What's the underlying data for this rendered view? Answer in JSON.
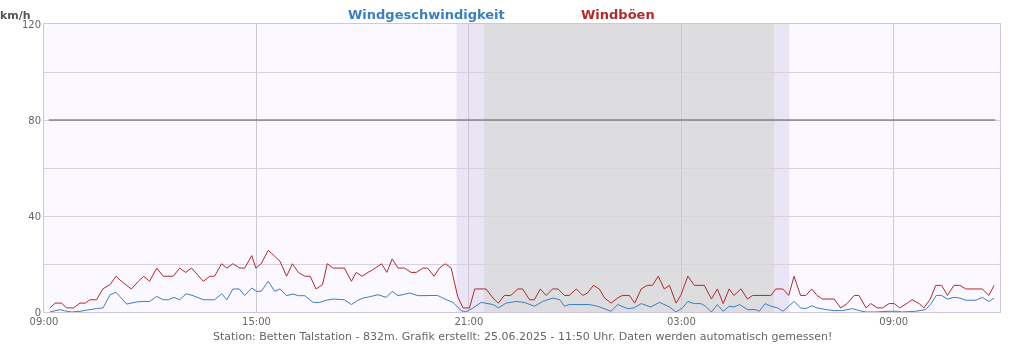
{
  "chart_data": {
    "type": "line",
    "ylabel": "km/h",
    "annotations": [
      "Station: Betten Talstation - 832m. Grafik erstellt: 25.06.2025 - 11:50 Uhr. Daten werden automatisch gemessen!"
    ],
    "xlim": [
      "2025-06-24T09:00",
      "2025-06-25T12:00"
    ],
    "xticks": [
      {
        "value": "2025-06-24T09:00",
        "label": "09:00"
      },
      {
        "value": "2025-06-24T15:00",
        "label": "15:00"
      },
      {
        "value": "2025-06-24T21:00",
        "label": "21:00"
      },
      {
        "value": "2025-06-25T03:00",
        "label": "03:00"
      },
      {
        "value": "2025-06-25T09:00",
        "label": "09:00"
      }
    ],
    "ylim": [
      0,
      120
    ],
    "yticks": [
      0,
      {
        "value": 20,
        "label": null
      },
      40,
      {
        "value": 60,
        "label": null
      },
      80,
      {
        "value": 100,
        "label": null
      },
      120
    ],
    "grid": true,
    "legend": "top",
    "marker": "none",
    "line_style": "solid",
    "ref_lines": [
      {
        "axis": "y",
        "value": 80,
        "color": "#555555"
      }
    ],
    "bands": [
      {
        "axis": "x",
        "from": "2025-06-24T20:39",
        "to": "2025-06-25T06:03",
        "color": "#e9e5f5"
      },
      {
        "axis": "x",
        "from": "2025-06-24T21:26",
        "to": "2025-06-25T05:37",
        "color": "#dddde0"
      }
    ],
    "series": [
      {
        "name": "Windgeschwindigkeit",
        "color": "#3a7fc1",
        "x": [
          "2025-06-24T09:10",
          "2025-06-24T09:27",
          "2025-06-24T09:35",
          "2025-06-24T09:47",
          "2025-06-24T10:01",
          "2025-06-24T10:18",
          "2025-06-24T10:29",
          "2025-06-24T10:40",
          "2025-06-24T10:52",
          "2025-06-24T11:02",
          "2025-06-24T11:11",
          "2025-06-24T11:20",
          "2025-06-24T11:37",
          "2025-06-24T11:48",
          "2025-06-24T11:59",
          "2025-06-24T12:11",
          "2025-06-24T12:22",
          "2025-06-24T12:31",
          "2025-06-24T12:40",
          "2025-06-24T12:50",
          "2025-06-24T13:01",
          "2025-06-24T13:13",
          "2025-06-24T13:30",
          "2025-06-24T13:49",
          "2025-06-24T14:01",
          "2025-06-24T14:10",
          "2025-06-24T14:20",
          "2025-06-24T14:31",
          "2025-06-24T14:40",
          "2025-06-24T14:52",
          "2025-06-24T15:00",
          "2025-06-24T15:08",
          "2025-06-24T15:20",
          "2025-06-24T15:31",
          "2025-06-24T15:40",
          "2025-06-24T15:51",
          "2025-06-24T16:02",
          "2025-06-24T16:11",
          "2025-06-24T16:22",
          "2025-06-24T16:36",
          "2025-06-24T16:47",
          "2025-06-24T16:58",
          "2025-06-24T17:10",
          "2025-06-24T17:29",
          "2025-06-24T17:41",
          "2025-06-24T17:52",
          "2025-06-24T18:01",
          "2025-06-24T18:11",
          "2025-06-24T18:26",
          "2025-06-24T18:40",
          "2025-06-24T18:50",
          "2025-06-24T19:00",
          "2025-06-24T19:20",
          "2025-06-24T19:34",
          "2025-06-24T20:07",
          "2025-06-24T20:22",
          "2025-06-24T20:33",
          "2025-06-24T20:47",
          "2025-06-24T20:55",
          "2025-06-24T21:07",
          "2025-06-24T21:21",
          "2025-06-24T21:41",
          "2025-06-24T21:50",
          "2025-06-24T22:03",
          "2025-06-24T22:20",
          "2025-06-24T22:34",
          "2025-06-24T22:51",
          "2025-06-24T23:05",
          "2025-06-24T23:22",
          "2025-06-24T23:34",
          "2025-06-24T23:42",
          "2025-06-24T23:50",
          "2025-06-25T00:10",
          "2025-06-25T00:24",
          "2025-06-25T00:38",
          "2025-06-25T01:01",
          "2025-06-25T01:12",
          "2025-06-25T01:29",
          "2025-06-25T01:40",
          "2025-06-25T01:52",
          "2025-06-25T02:08",
          "2025-06-25T02:23",
          "2025-06-25T02:40",
          "2025-06-25T02:51",
          "2025-06-25T03:02",
          "2025-06-25T03:11",
          "2025-06-25T03:22",
          "2025-06-25T03:33",
          "2025-06-25T03:41",
          "2025-06-25T03:51",
          "2025-06-25T04:01",
          "2025-06-25T04:11",
          "2025-06-25T04:21",
          "2025-06-25T04:29",
          "2025-06-25T04:39",
          "2025-06-25T04:52",
          "2025-06-25T05:06",
          "2025-06-25T05:12",
          "2025-06-25T05:22",
          "2025-06-25T05:32",
          "2025-06-25T05:43",
          "2025-06-25T05:52",
          "2025-06-25T06:02",
          "2025-06-25T06:11",
          "2025-06-25T06:22",
          "2025-06-25T06:31",
          "2025-06-25T06:41",
          "2025-06-25T06:50",
          "2025-06-25T07:05",
          "2025-06-25T07:19",
          "2025-06-25T07:33",
          "2025-06-25T07:50",
          "2025-06-25T08:01",
          "2025-06-25T08:13",
          "2025-06-25T08:29",
          "2025-06-25T08:52",
          "2025-06-25T09:06",
          "2025-06-25T09:14",
          "2025-06-25T09:37",
          "2025-06-25T09:54",
          "2025-06-25T10:02",
          "2025-06-25T10:12",
          "2025-06-25T10:21",
          "2025-06-25T10:31",
          "2025-06-25T10:42",
          "2025-06-25T10:52",
          "2025-06-25T11:02",
          "2025-06-25T11:19",
          "2025-06-25T11:30",
          "2025-06-25T11:41",
          "2025-06-25T11:50"
        ],
        "values": [
          0,
          1,
          0.5,
          0,
          0.3,
          1,
          1.4,
          1.7,
          7.2,
          8.2,
          5.8,
          3.3,
          4.2,
          4.4,
          4.4,
          6.5,
          5.1,
          5.1,
          6.1,
          5.1,
          7.6,
          6.8,
          5.1,
          5.1,
          7.6,
          5.1,
          9.6,
          9.6,
          6.9,
          10,
          8.6,
          8.6,
          12.8,
          8.6,
          9.6,
          6.8,
          7.5,
          6.8,
          6.8,
          4,
          4,
          4.9,
          5.4,
          5.1,
          3.1,
          4.9,
          5.8,
          6.3,
          7.2,
          6.1,
          8.6,
          6.8,
          7.9,
          6.8,
          6.9,
          5.1,
          4,
          0.6,
          0,
          1.7,
          4,
          3.1,
          1.7,
          3.7,
          4.4,
          4,
          2.4,
          4.4,
          5.8,
          5.1,
          2.4,
          3.1,
          3.1,
          3.1,
          2.4,
          0.3,
          3.1,
          1.4,
          1.7,
          3.5,
          2.1,
          4,
          2.1,
          0,
          1.7,
          4.4,
          3.5,
          3.5,
          2.4,
          0,
          3.1,
          0.3,
          2.4,
          2.1,
          3.1,
          1,
          1,
          0.3,
          3.5,
          2.4,
          1.7,
          0.3,
          2.4,
          4.4,
          1.7,
          1.4,
          2.6,
          1.7,
          1,
          0.6,
          0.6,
          1.4,
          0.6,
          0,
          0,
          0.3,
          0.3,
          0,
          0.3,
          1,
          3.1,
          6.9,
          6.9,
          5.4,
          6.1,
          5.8,
          4.9,
          4.9,
          6.1,
          4.4,
          5.8
        ]
      },
      {
        "name": "Windböen",
        "color": "#b22a2a",
        "x": [
          "2025-06-24T09:10",
          "2025-06-24T09:19",
          "2025-06-24T09:30",
          "2025-06-24T09:38",
          "2025-06-24T09:50",
          "2025-06-24T10:01",
          "2025-06-24T10:10",
          "2025-06-24T10:18",
          "2025-06-24T10:29",
          "2025-06-24T10:40",
          "2025-06-24T10:52",
          "2025-06-24T11:02",
          "2025-06-24T11:11",
          "2025-06-24T11:28",
          "2025-06-24T11:40",
          "2025-06-24T11:49",
          "2025-06-24T11:59",
          "2025-06-24T12:11",
          "2025-06-24T12:22",
          "2025-06-24T12:39",
          "2025-06-24T12:50",
          "2025-06-24T13:00",
          "2025-06-24T13:10",
          "2025-06-24T13:30",
          "2025-06-24T13:41",
          "2025-06-24T13:49",
          "2025-06-24T14:01",
          "2025-06-24T14:10",
          "2025-06-24T14:20",
          "2025-06-24T14:32",
          "2025-06-24T14:40",
          "2025-06-24T14:52",
          "2025-06-24T14:59",
          "2025-06-24T15:08",
          "2025-06-24T15:20",
          "2025-06-24T15:31",
          "2025-06-24T15:40",
          "2025-06-24T15:51",
          "2025-06-24T16:01",
          "2025-06-24T16:11",
          "2025-06-24T16:22",
          "2025-06-24T16:31",
          "2025-06-24T16:41",
          "2025-06-24T16:52",
          "2025-06-24T17:00",
          "2025-06-24T17:10",
          "2025-06-24T17:29",
          "2025-06-24T17:41",
          "2025-06-24T17:49",
          "2025-06-24T17:59",
          "2025-06-24T18:09",
          "2025-06-24T18:17",
          "2025-06-24T18:32",
          "2025-06-24T18:41",
          "2025-06-24T18:50",
          "2025-06-24T19:00",
          "2025-06-24T19:11",
          "2025-06-24T19:22",
          "2025-06-24T19:31",
          "2025-06-24T19:42",
          "2025-06-24T19:50",
          "2025-06-24T20:01",
          "2025-06-24T20:10",
          "2025-06-24T20:20",
          "2025-06-24T20:30",
          "2025-06-24T20:41",
          "2025-06-24T20:50",
          "2025-06-24T21:01",
          "2025-06-24T21:10",
          "2025-06-24T21:29",
          "2025-06-24T21:41",
          "2025-06-24T21:50",
          "2025-06-24T22:00",
          "2025-06-24T22:11",
          "2025-06-24T22:23",
          "2025-06-24T22:31",
          "2025-06-24T22:43",
          "2025-06-24T22:51",
          "2025-06-24T23:01",
          "2025-06-24T23:11",
          "2025-06-24T23:22",
          "2025-06-24T23:31",
          "2025-06-24T23:42",
          "2025-06-24T23:50",
          "2025-06-25T00:02",
          "2025-06-25T00:13",
          "2025-06-25T00:21",
          "2025-06-25T00:31",
          "2025-06-25T00:41",
          "2025-06-25T00:50",
          "2025-06-25T01:01",
          "2025-06-25T01:12",
          "2025-06-25T01:20",
          "2025-06-25T01:32",
          "2025-06-25T01:41",
          "2025-06-25T01:52",
          "2025-06-25T02:02",
          "2025-06-25T02:11",
          "2025-06-25T02:21",
          "2025-06-25T02:31",
          "2025-06-25T02:40",
          "2025-06-25T02:51",
          "2025-06-25T02:59",
          "2025-06-25T03:11",
          "2025-06-25T03:22",
          "2025-06-25T03:39",
          "2025-06-25T03:51",
          "2025-06-25T04:01",
          "2025-06-25T04:11",
          "2025-06-25T04:21",
          "2025-06-25T04:29",
          "2025-06-25T04:41",
          "2025-06-25T04:52",
          "2025-06-25T05:01",
          "2025-06-25T05:32",
          "2025-06-25T05:40",
          "2025-06-25T05:52",
          "2025-06-25T06:02",
          "2025-06-25T06:11",
          "2025-06-25T06:22",
          "2025-06-25T06:31",
          "2025-06-25T06:41",
          "2025-06-25T06:50",
          "2025-06-25T06:59",
          "2025-06-25T07:19",
          "2025-06-25T07:30",
          "2025-06-25T07:41",
          "2025-06-25T07:53",
          "2025-06-25T08:01",
          "2025-06-25T08:13",
          "2025-06-25T08:21",
          "2025-06-25T08:32",
          "2025-06-25T08:41",
          "2025-06-25T08:52",
          "2025-06-25T09:01",
          "2025-06-25T09:10",
          "2025-06-25T09:23",
          "2025-06-25T09:31",
          "2025-06-25T09:43",
          "2025-06-25T09:51",
          "2025-06-25T10:02",
          "2025-06-25T10:11",
          "2025-06-25T10:21",
          "2025-06-25T10:31",
          "2025-06-25T10:42",
          "2025-06-25T10:52",
          "2025-06-25T11:02",
          "2025-06-25T11:30",
          "2025-06-25T11:41",
          "2025-06-25T11:50"
        ],
        "values": [
          1.7,
          3.7,
          3.7,
          1.7,
          1.7,
          3.7,
          3.7,
          5.1,
          5.1,
          9.7,
          11.4,
          14.9,
          12.8,
          9.6,
          12.8,
          14.9,
          12.8,
          18.3,
          14.9,
          14.9,
          18.3,
          16.5,
          18.3,
          12.8,
          14.9,
          14.9,
          20.1,
          18.3,
          20.1,
          18.3,
          18.3,
          23.5,
          18.3,
          20.1,
          25.7,
          23.2,
          21.1,
          14.9,
          20.1,
          16.5,
          14.9,
          14.9,
          9.6,
          11.4,
          20.1,
          18.3,
          18.3,
          12.8,
          16.5,
          14.9,
          16.5,
          17.6,
          20.1,
          16.5,
          22.1,
          18.3,
          18.3,
          16.5,
          16.5,
          18.3,
          18.3,
          14.9,
          18.3,
          20.1,
          18.3,
          6.5,
          1.7,
          1.7,
          9.6,
          9.6,
          5.8,
          3.7,
          6.9,
          6.9,
          9.6,
          9.6,
          5.1,
          5.1,
          9.6,
          6.9,
          9.6,
          9.6,
          6.9,
          6.9,
          9.6,
          6.9,
          7.9,
          11.1,
          9.6,
          5.8,
          3.7,
          5.8,
          6.9,
          6.9,
          3.7,
          9.6,
          11.1,
          11.1,
          14.9,
          9.6,
          11.1,
          3.7,
          6.9,
          14.9,
          11.1,
          11.1,
          5.4,
          9.6,
          3.5,
          9.6,
          6.9,
          9.6,
          5.4,
          6.9,
          6.9,
          9.6,
          9.6,
          6.9,
          14.9,
          6.9,
          6.9,
          9.6,
          6.9,
          5.4,
          5.4,
          1.7,
          3.5,
          6.9,
          6.9,
          1.7,
          3.5,
          1.7,
          1.7,
          3.5,
          3.5,
          1.7,
          3.7,
          5.1,
          3.5,
          1.7,
          5.4,
          11.1,
          11.1,
          6.9,
          11.1,
          11.1,
          9.6,
          9.6,
          6.9,
          11.1
        ]
      }
    ]
  }
}
